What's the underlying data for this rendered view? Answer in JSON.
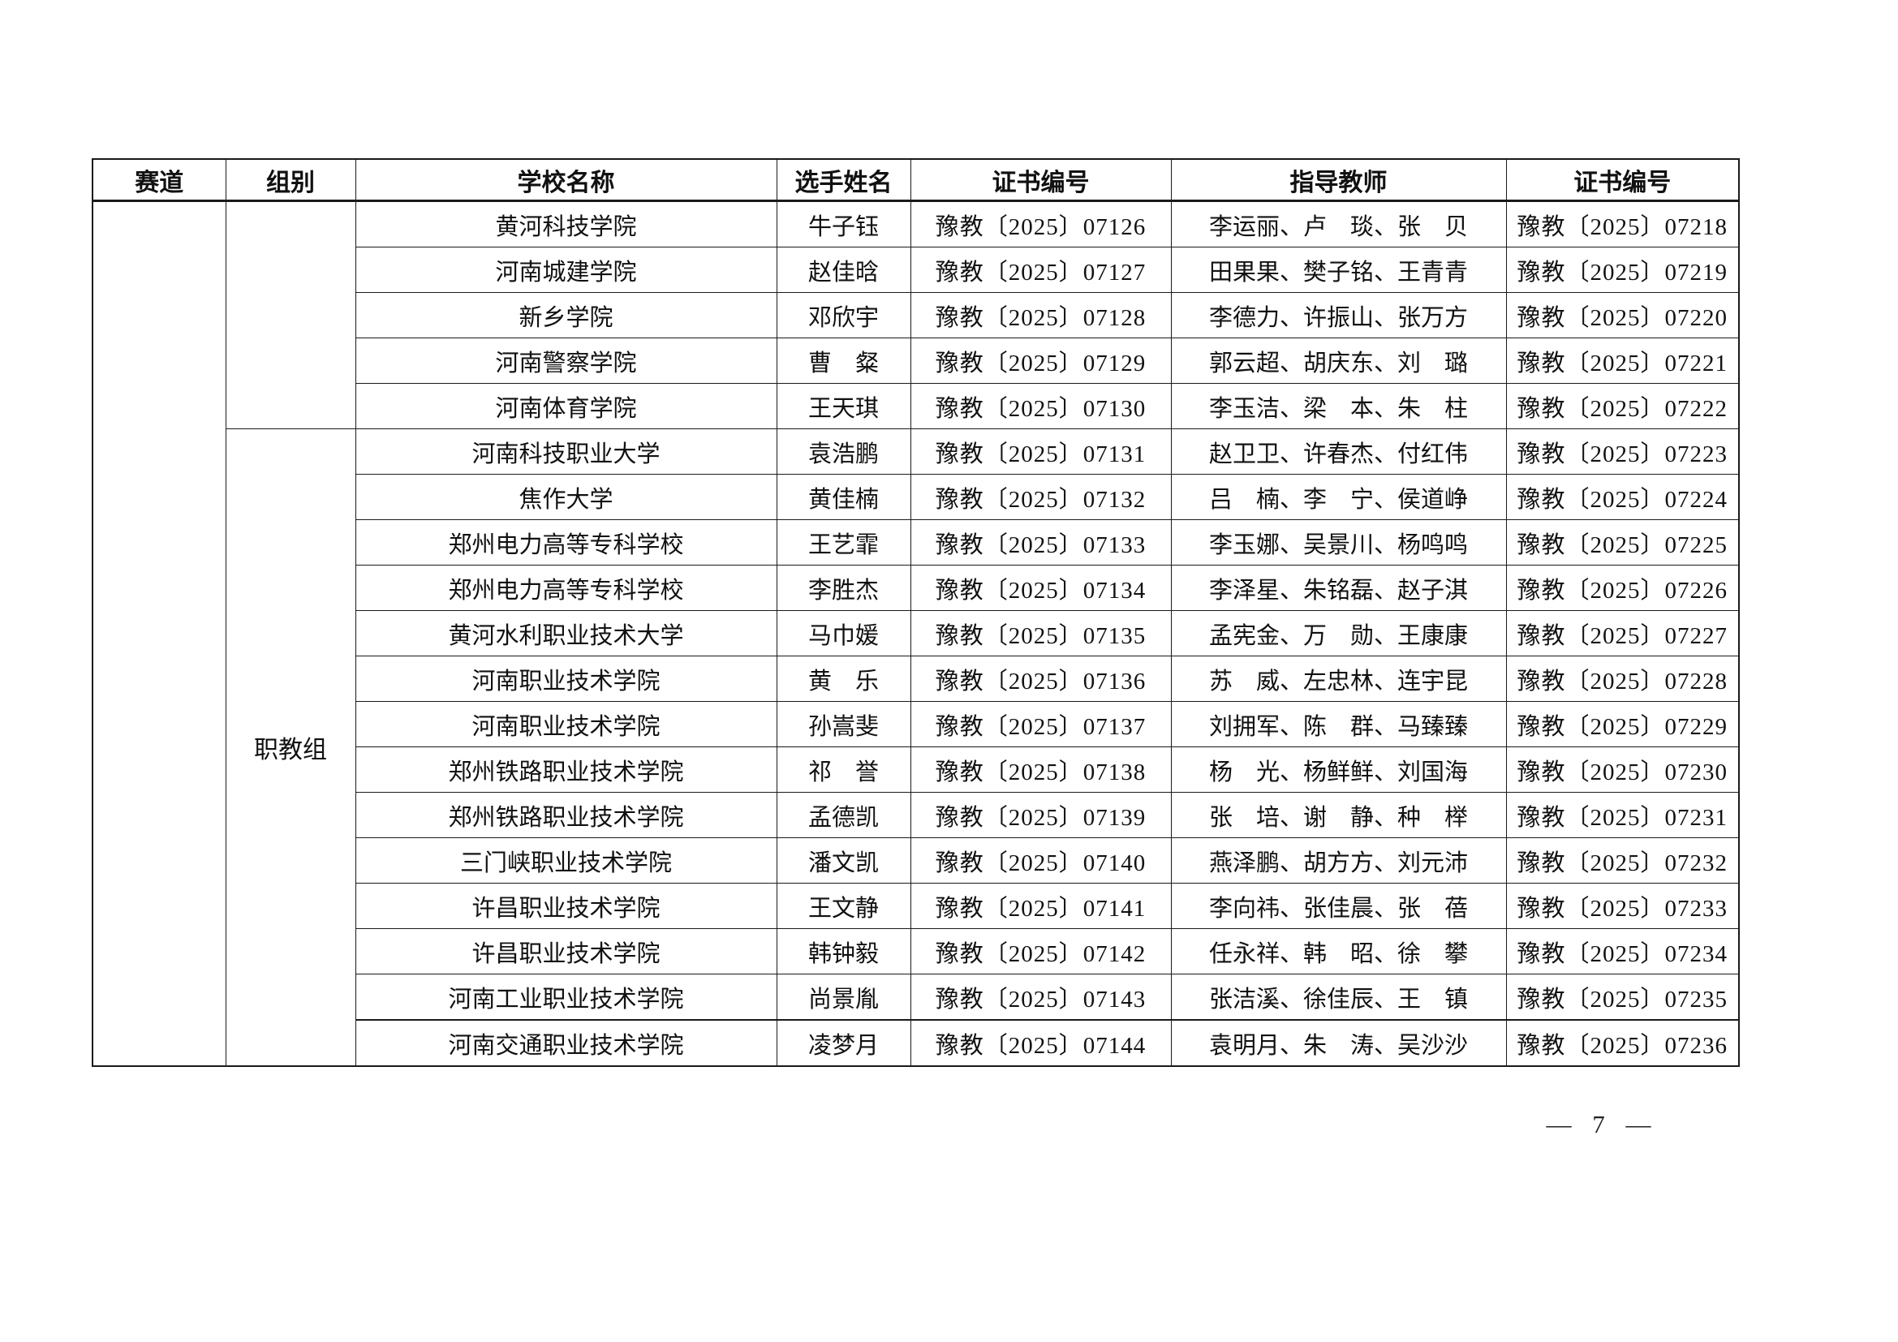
{
  "page": {
    "number_label": "— 7 —"
  },
  "colors": {
    "border": "#1a1a1a",
    "text": "#111111",
    "background": "#ffffff"
  },
  "table": {
    "headers": [
      "赛道",
      "组别",
      "学校名称",
      "选手姓名",
      "证书编号",
      "指导教师",
      "证书编号"
    ],
    "track_label": "",
    "groups": [
      {
        "label": "",
        "rowspan": 5
      },
      {
        "label": "职教组",
        "rowspan": 14
      }
    ],
    "rows": [
      {
        "school": "黄河科技学院",
        "name": "牛子钰",
        "cert": "豫教〔2025〕07126",
        "teachers": "李运丽、卢　琰、张　贝",
        "teacher_cert": "豫教〔2025〕07218"
      },
      {
        "school": "河南城建学院",
        "name": "赵佳晗",
        "cert": "豫教〔2025〕07127",
        "teachers": "田果果、樊子铭、王青青",
        "teacher_cert": "豫教〔2025〕07219"
      },
      {
        "school": "新乡学院",
        "name": "邓欣宇",
        "cert": "豫教〔2025〕07128",
        "teachers": "李德力、许振山、张万方",
        "teacher_cert": "豫教〔2025〕07220"
      },
      {
        "school": "河南警察学院",
        "name": "曹　粲",
        "cert": "豫教〔2025〕07129",
        "teachers": "郭云超、胡庆东、刘　璐",
        "teacher_cert": "豫教〔2025〕07221"
      },
      {
        "school": "河南体育学院",
        "name": "王天琪",
        "cert": "豫教〔2025〕07130",
        "teachers": "李玉洁、梁　本、朱　柱",
        "teacher_cert": "豫教〔2025〕07222"
      },
      {
        "school": "河南科技职业大学",
        "name": "袁浩鹏",
        "cert": "豫教〔2025〕07131",
        "teachers": "赵卫卫、许春杰、付红伟",
        "teacher_cert": "豫教〔2025〕07223"
      },
      {
        "school": "焦作大学",
        "name": "黄佳楠",
        "cert": "豫教〔2025〕07132",
        "teachers": "吕　楠、李　宁、侯道峥",
        "teacher_cert": "豫教〔2025〕07224"
      },
      {
        "school": "郑州电力高等专科学校",
        "name": "王艺霏",
        "cert": "豫教〔2025〕07133",
        "teachers": "李玉娜、吴景川、杨鸣鸣",
        "teacher_cert": "豫教〔2025〕07225"
      },
      {
        "school": "郑州电力高等专科学校",
        "name": "李胜杰",
        "cert": "豫教〔2025〕07134",
        "teachers": "李泽星、朱铭磊、赵子淇",
        "teacher_cert": "豫教〔2025〕07226"
      },
      {
        "school": "黄河水利职业技术大学",
        "name": "马巾媛",
        "cert": "豫教〔2025〕07135",
        "teachers": "孟宪金、万　勋、王康康",
        "teacher_cert": "豫教〔2025〕07227"
      },
      {
        "school": "河南职业技术学院",
        "name": "黄　乐",
        "cert": "豫教〔2025〕07136",
        "teachers": "苏　威、左忠林、连宇昆",
        "teacher_cert": "豫教〔2025〕07228"
      },
      {
        "school": "河南职业技术学院",
        "name": "孙嵩斐",
        "cert": "豫教〔2025〕07137",
        "teachers": "刘拥军、陈　群、马臻臻",
        "teacher_cert": "豫教〔2025〕07229"
      },
      {
        "school": "郑州铁路职业技术学院",
        "name": "祁　誉",
        "cert": "豫教〔2025〕07138",
        "teachers": "杨　光、杨鲜鲜、刘国海",
        "teacher_cert": "豫教〔2025〕07230"
      },
      {
        "school": "郑州铁路职业技术学院",
        "name": "孟德凯",
        "cert": "豫教〔2025〕07139",
        "teachers": "张　培、谢　静、种　榉",
        "teacher_cert": "豫教〔2025〕07231"
      },
      {
        "school": "三门峡职业技术学院",
        "name": "潘文凯",
        "cert": "豫教〔2025〕07140",
        "teachers": "燕泽鹏、胡方方、刘元沛",
        "teacher_cert": "豫教〔2025〕07232"
      },
      {
        "school": "许昌职业技术学院",
        "name": "王文静",
        "cert": "豫教〔2025〕07141",
        "teachers": "李向祎、张佳晨、张　蓓",
        "teacher_cert": "豫教〔2025〕07233"
      },
      {
        "school": "许昌职业技术学院",
        "name": "韩钟毅",
        "cert": "豫教〔2025〕07142",
        "teachers": "任永祥、韩　昭、徐　攀",
        "teacher_cert": "豫教〔2025〕07234"
      },
      {
        "school": "河南工业职业技术学院",
        "name": "尚景胤",
        "cert": "豫教〔2025〕07143",
        "teachers": "张洁溪、徐佳辰、王　镇",
        "teacher_cert": "豫教〔2025〕07235"
      },
      {
        "school": "河南交通职业技术学院",
        "name": "凌梦月",
        "cert": "豫教〔2025〕07144",
        "teachers": "袁明月、朱　涛、吴沙沙",
        "teacher_cert": "豫教〔2025〕07236"
      }
    ]
  }
}
